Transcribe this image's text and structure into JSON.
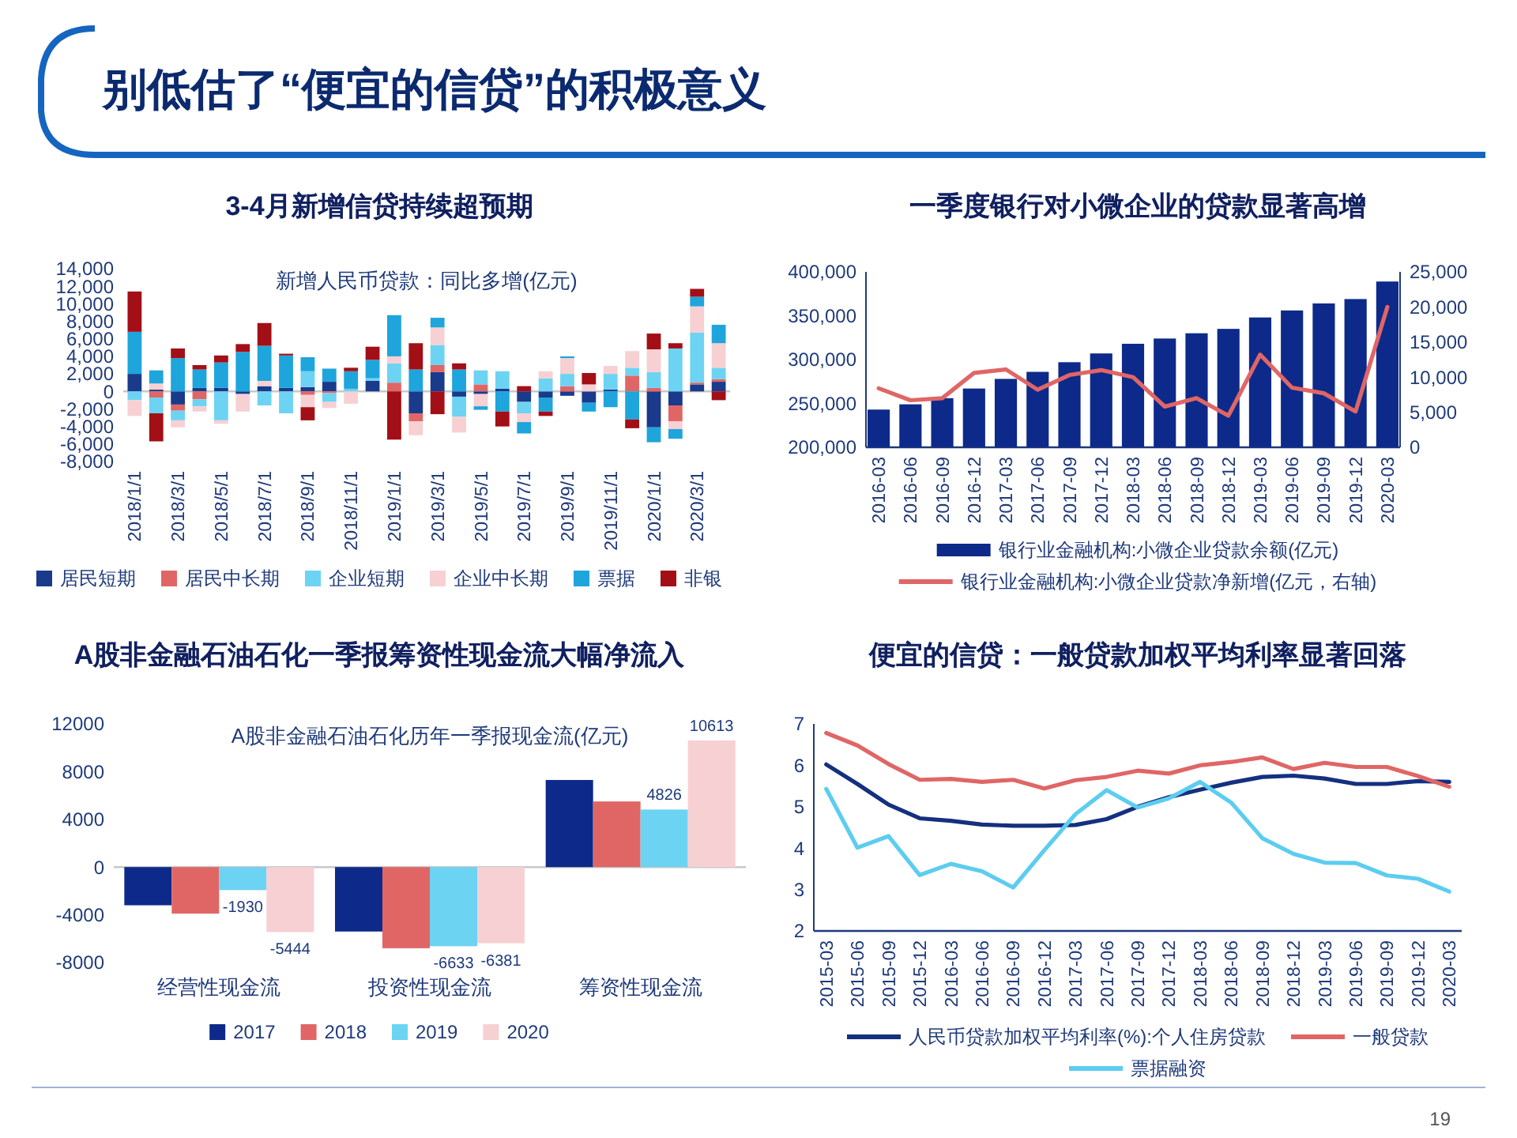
{
  "chart_data": [
    {
      "type": "bar",
      "stacked": true,
      "title": "3-4月新增信贷持续超预期",
      "subtitle": "新增人民币贷款：同比多增(亿元)",
      "annotations": [
        "别低估了“便宜的信贷”的积极意义"
      ],
      "legend": "bottom",
      "categories": [
        "2018/1/1",
        null,
        "2018/3/1",
        null,
        "2018/5/1",
        null,
        "2018/7/1",
        null,
        "2018/9/1",
        null,
        "2018/11/1",
        null,
        "2019/1/1",
        null,
        "2019/3/1",
        null,
        "2019/5/1",
        null,
        "2019/7/1",
        null,
        "2019/9/1",
        null,
        "2019/11/1",
        null,
        "2020/1/1",
        null,
        "2020/3/1",
        null
      ],
      "ylim": [
        -8000,
        14000
      ],
      "yticks": [
        {
          "value": -8000,
          "label": "-8,000"
        },
        {
          "value": -6000,
          "label": "-6,000"
        },
        {
          "value": -4000,
          "label": "-4,000"
        },
        {
          "value": -2000,
          "label": "-2,000"
        },
        0,
        {
          "value": 2000,
          "label": "2,000"
        },
        {
          "value": 4000,
          "label": "4,000"
        },
        {
          "value": 6000,
          "label": "6,000"
        },
        {
          "value": 8000,
          "label": "8,000"
        },
        {
          "value": 10000,
          "label": "10,000"
        },
        {
          "value": 12000,
          "label": "12,000"
        },
        {
          "value": 14000,
          "label": "14,000"
        }
      ],
      "series": [
        {
          "name": "居民短期",
          "color": "#1a3a8c",
          "values": [
            2000,
            200,
            -1500,
            400,
            400,
            -300,
            600,
            400,
            500,
            1100,
            0,
            1200,
            0,
            -2500,
            2200,
            -600,
            -300,
            300,
            -1200,
            -700,
            -500,
            -1300,
            200,
            0,
            -4100,
            -1600,
            800,
            1100
          ]
        },
        {
          "name": "居民中长期",
          "color": "#e06666",
          "values": [
            0,
            -700,
            -700,
            -900,
            0,
            0,
            0,
            0,
            -400,
            -200,
            0,
            0,
            1000,
            -900,
            800,
            0,
            800,
            0,
            0,
            0,
            600,
            0,
            0,
            1800,
            400,
            -1800,
            200,
            300
          ]
        },
        {
          "name": "企业短期",
          "color": "#6dd3f3",
          "values": [
            -1000,
            -1800,
            -1100,
            -800,
            -3300,
            0,
            -1600,
            -2500,
            1800,
            -1000,
            300,
            300,
            2200,
            0,
            2300,
            -2300,
            1600,
            2000,
            -1300,
            1500,
            1400,
            0,
            1800,
            900,
            1800,
            4900,
            5700,
            1300
          ]
        },
        {
          "name": "企业中长期",
          "color": "#f7d0d3",
          "values": [
            -1800,
            700,
            -800,
            -600,
            -400,
            -2000,
            600,
            0,
            -1400,
            -700,
            -1400,
            null,
            800,
            -1600,
            2000,
            -1800,
            -1400,
            0,
            -1000,
            800,
            1800,
            800,
            900,
            1900,
            2600,
            -900,
            3000,
            2800
          ]
        },
        {
          "name": "票据",
          "color": "#1ea5dc",
          "values": [
            4800,
            1500,
            3800,
            2100,
            2900,
            4500,
            4000,
            3700,
            1600,
            1500,
            2000,
            2100,
            4700,
            2500,
            1100,
            2500,
            -400,
            -2300,
            -1300,
            -1600,
            200,
            -1000,
            -1800,
            -3200,
            -1700,
            -1100,
            1100,
            2100
          ]
        },
        {
          "name": "非银",
          "color": "#a30f16",
          "values": [
            4600,
            -3200,
            1100,
            500,
            800,
            900,
            2600,
            200,
            -1500,
            0,
            400,
            1500,
            -5500,
            3000,
            -2600,
            700,
            0,
            -1700,
            600,
            -500,
            0,
            1300,
            0,
            -1000,
            1800,
            600,
            900,
            -1000
          ]
        }
      ]
    },
    {
      "type": "bar",
      "title": "一季度银行对小微企业的贷款显著高增",
      "legend": "bottom",
      "categories": [
        "2016-03",
        "2016-06",
        "2016-09",
        "2016-12",
        "2017-03",
        "2017-06",
        "2017-09",
        "2017-12",
        "2018-03",
        "2018-06",
        "2018-09",
        "2018-12",
        "2019-03",
        "2019-06",
        "2019-09",
        "2019-12",
        "2020-03"
      ],
      "ylim": [
        200000,
        400000
      ],
      "yticks": [
        {
          "value": 200000,
          "label": "200,000"
        },
        {
          "value": 250000,
          "label": "250,000"
        },
        {
          "value": 300000,
          "label": "300,000"
        },
        {
          "value": 350000,
          "label": "350,000"
        },
        {
          "value": 400000,
          "label": "400,000"
        }
      ],
      "y2lim": [
        0,
        25000
      ],
      "y2ticks": [
        0,
        {
          "value": 5000,
          "label": "5,000"
        },
        {
          "value": 10000,
          "label": "10,000"
        },
        {
          "value": 15000,
          "label": "15,000"
        },
        {
          "value": 20000,
          "label": "20,000"
        },
        {
          "value": 25000,
          "label": "25,000"
        }
      ],
      "series": [
        {
          "name": "银行业金融机构:小微企业贷款余额(亿元)",
          "color": "#0d2a8a",
          "values": [
            243000,
            249000,
            256000,
            267000,
            278000,
            286000,
            297000,
            307000,
            318000,
            324000,
            330000,
            335000,
            348000,
            356000,
            364000,
            369000,
            389000
          ]
        },
        {
          "name": "银行业金融机构:小微企业贷款净新增(亿元，右轴)",
          "type": "line",
          "axis": "y2",
          "color": "#e06666",
          "values": [
            8400,
            6700,
            7000,
            10600,
            11100,
            8200,
            10300,
            11000,
            10000,
            5800,
            7000,
            4500,
            13200,
            8500,
            7700,
            5100,
            20000
          ]
        }
      ]
    },
    {
      "type": "bar",
      "title": "A股非金融石油石化一季报筹资性现金流大幅净流入",
      "subtitle": "A股非金融石油石化历年一季报现金流(亿元)",
      "legend": "bottom",
      "categories": [
        "经营性现金流",
        "投资性现金流",
        "筹资性现金流"
      ],
      "ylim": [
        -8000,
        12000
      ],
      "yticks": [
        -8000,
        -4000,
        0,
        4000,
        8000,
        12000
      ],
      "series": [
        {
          "name": "2017",
          "color": "#0d2a8a",
          "values": [
            -3200,
            -5400,
            7300
          ]
        },
        {
          "name": "2018",
          "color": "#e06666",
          "values": [
            -3900,
            -6800,
            5500
          ]
        },
        {
          "name": "2019",
          "color": "#6dd3f3",
          "values": [
            -1930,
            -6633,
            4826
          ],
          "value_labels": [
            "-1930",
            "-6633",
            "4826"
          ]
        },
        {
          "name": "2020",
          "color": "#f7d0d3",
          "values": [
            -5444,
            -6381,
            10613
          ],
          "value_labels": [
            "-5444",
            "-6381",
            "10613"
          ]
        }
      ]
    },
    {
      "type": "line",
      "title": "便宜的信贷：一般贷款加权平均利率显著回落",
      "annotations": [
        "19"
      ],
      "legend": "bottom",
      "categories": [
        "2015-03",
        "2015-06",
        "2015-09",
        "2015-12",
        "2016-03",
        "2016-06",
        "2016-09",
        "2016-12",
        "2017-03",
        "2017-06",
        "2017-09",
        "2017-12",
        "2018-03",
        "2018-06",
        "2018-09",
        "2018-12",
        "2019-03",
        "2019-06",
        "2019-09",
        "2019-12",
        "2020-03"
      ],
      "ylim": [
        2,
        7
      ],
      "yticks": [
        2,
        3,
        4,
        5,
        6,
        7
      ],
      "series": [
        {
          "name": "人民币贷款加权平均利率(%):个人住房贷款",
          "color": "#14307f",
          "values": [
            6.02,
            5.55,
            5.05,
            4.72,
            4.66,
            4.57,
            4.54,
            4.54,
            4.56,
            4.7,
            5.0,
            5.23,
            5.41,
            5.58,
            5.72,
            5.75,
            5.68,
            5.55,
            5.55,
            5.62,
            5.6
          ]
        },
        {
          "name": "一般贷款",
          "color": "#e06666",
          "values": [
            6.78,
            6.48,
            6.03,
            5.65,
            5.67,
            5.6,
            5.65,
            5.44,
            5.64,
            5.72,
            5.87,
            5.8,
            6.0,
            6.08,
            6.19,
            5.91,
            6.06,
            5.96,
            5.96,
            5.74,
            5.48
          ]
        },
        {
          "name": "票据融资",
          "color": "#5ccdf0",
          "values": [
            5.43,
            4.01,
            4.29,
            3.35,
            3.62,
            3.44,
            3.05,
            3.95,
            4.82,
            5.4,
            4.98,
            5.2,
            5.6,
            5.1,
            4.24,
            3.86,
            3.65,
            3.64,
            3.34,
            3.26,
            2.95
          ]
        }
      ]
    }
  ]
}
